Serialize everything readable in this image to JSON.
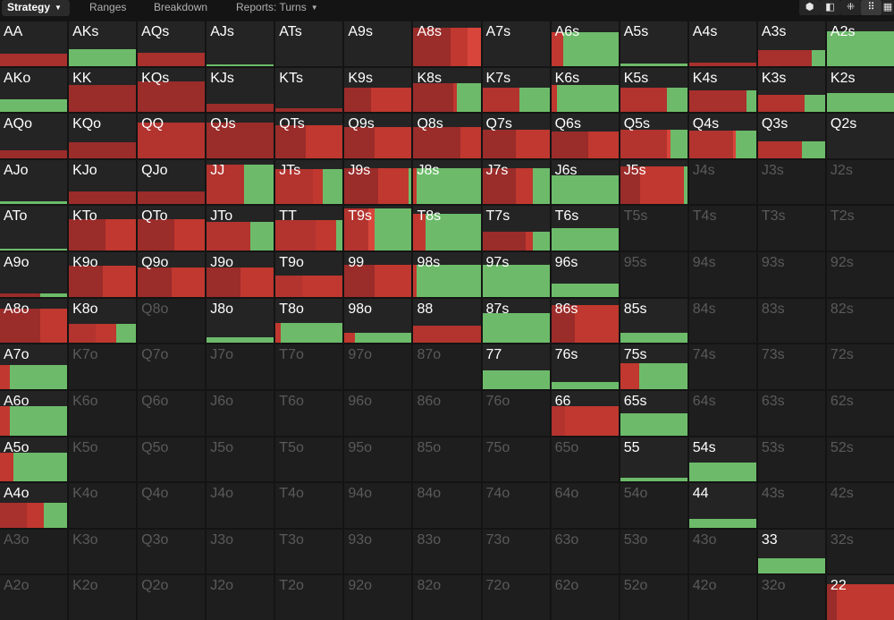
{
  "toolbar": {
    "tabs": [
      {
        "label": "Strategy",
        "active": true,
        "dropdown": true
      },
      {
        "label": "Ranges",
        "active": false,
        "dropdown": false
      },
      {
        "label": "Breakdown",
        "active": false,
        "dropdown": false
      },
      {
        "label": "Reports: Turns",
        "active": false,
        "dropdown": true
      }
    ],
    "view_buttons": [
      {
        "icon": "cube-icon",
        "glyph": "⬢"
      },
      {
        "icon": "half-square-icon",
        "glyph": "◧"
      },
      {
        "icon": "grid-4-icon",
        "glyph": "⁜"
      },
      {
        "icon": "grid-6-icon",
        "glyph": "⠿"
      },
      {
        "icon": "grid-9-icon",
        "glyph": "▦"
      }
    ]
  },
  "colors": {
    "raise_dark": "#8e2a28",
    "raise_mid": "#b3332f",
    "raise_light": "#d8453a",
    "call_green": "#6dbb6a",
    "cell_bg": "#242424",
    "cell_dim_bg": "#1e1e1e"
  },
  "matrix": {
    "rows": [
      [
        [
          "AA",
          0.28,
          [
            [
              1,
              "#a8302d"
            ]
          ]
        ],
        [
          "AKs",
          0.38,
          [
            [
              1,
              "#6dbb6a"
            ]
          ]
        ],
        [
          "AQs",
          0.3,
          [
            [
              1,
              "#a8302d"
            ]
          ]
        ],
        [
          "AJs",
          0.04,
          [
            [
              1,
              "#6dbb6a"
            ]
          ]
        ],
        [
          "ATs",
          0,
          []
        ],
        [
          "A9s",
          0,
          []
        ],
        [
          "A8s",
          0.85,
          [
            [
              0.55,
              "#9a2c2a"
            ],
            [
              0.25,
              "#c0382f"
            ],
            [
              0.2,
              "#d8453a"
            ]
          ]
        ],
        [
          "A7s",
          0,
          []
        ],
        [
          "A6s",
          0.75,
          [
            [
              0.18,
              "#c0382f"
            ],
            [
              0.82,
              "#6dbb6a"
            ]
          ]
        ],
        [
          "A5s",
          0.06,
          [
            [
              1,
              "#6dbb6a"
            ]
          ]
        ],
        [
          "A4s",
          0.08,
          [
            [
              1,
              "#a8302d"
            ]
          ]
        ],
        [
          "A3s",
          0.35,
          [
            [
              0.8,
              "#a8302d"
            ],
            [
              0.2,
              "#6dbb6a"
            ]
          ]
        ],
        [
          "A2s",
          0.78,
          [
            [
              1,
              "#6dbb6a"
            ]
          ]
        ]
      ],
      [
        [
          "AKo",
          0.28,
          [
            [
              1,
              "#6dbb6a"
            ]
          ]
        ],
        [
          "KK",
          0.6,
          [
            [
              1,
              "#9a2c2a"
            ]
          ]
        ],
        [
          "KQs",
          0.7,
          [
            [
              1,
              "#9a2c2a"
            ]
          ]
        ],
        [
          "KJs",
          0.18,
          [
            [
              1,
              "#9a2c2a"
            ]
          ]
        ],
        [
          "KTs",
          0.08,
          [
            [
              1,
              "#9a2c2a"
            ]
          ]
        ],
        [
          "K9s",
          0.55,
          [
            [
              0.4,
              "#9a2c2a"
            ],
            [
              0.6,
              "#c0382f"
            ]
          ]
        ],
        [
          "K8s",
          0.65,
          [
            [
              0.6,
              "#9a2c2a"
            ],
            [
              0.05,
              "#c0382f"
            ],
            [
              0.35,
              "#6dbb6a"
            ]
          ]
        ],
        [
          "K7s",
          0.55,
          [
            [
              0.55,
              "#b3332f"
            ],
            [
              0.45,
              "#6dbb6a"
            ]
          ]
        ],
        [
          "K6s",
          0.6,
          [
            [
              0.08,
              "#c0382f"
            ],
            [
              0.92,
              "#6dbb6a"
            ]
          ]
        ],
        [
          "K5s",
          0.55,
          [
            [
              0.7,
              "#b3332f"
            ],
            [
              0.3,
              "#6dbb6a"
            ]
          ]
        ],
        [
          "K4s",
          0.48,
          [
            [
              0.85,
              "#a8302d"
            ],
            [
              0.15,
              "#6dbb6a"
            ]
          ]
        ],
        [
          "K3s",
          0.38,
          [
            [
              0.7,
              "#b3332f"
            ],
            [
              0.3,
              "#6dbb6a"
            ]
          ]
        ],
        [
          "K2s",
          0.42,
          [
            [
              1,
              "#6dbb6a"
            ]
          ]
        ]
      ],
      [
        [
          "AQo",
          0.18,
          [
            [
              1,
              "#9a2c2a"
            ]
          ]
        ],
        [
          "KQo",
          0.35,
          [
            [
              1,
              "#9a2c2a"
            ]
          ]
        ],
        [
          "QQ",
          0.8,
          [
            [
              1,
              "#b3332f"
            ]
          ]
        ],
        [
          "QJs",
          0.8,
          [
            [
              1,
              "#9a2c2a"
            ]
          ]
        ],
        [
          "QTs",
          0.75,
          [
            [
              0.45,
              "#9a2c2a"
            ],
            [
              0.55,
              "#c0382f"
            ]
          ]
        ],
        [
          "Q9s",
          0.7,
          [
            [
              0.45,
              "#9a2c2a"
            ],
            [
              0.55,
              "#c0382f"
            ]
          ]
        ],
        [
          "Q8s",
          0.7,
          [
            [
              0.7,
              "#9a2c2a"
            ],
            [
              0.3,
              "#c0382f"
            ]
          ]
        ],
        [
          "Q7s",
          0.65,
          [
            [
              0.5,
              "#9a2c2a"
            ],
            [
              0.5,
              "#c0382f"
            ]
          ]
        ],
        [
          "Q6s",
          0.6,
          [
            [
              0.55,
              "#9a2c2a"
            ],
            [
              0.45,
              "#c0382f"
            ]
          ]
        ],
        [
          "Q5s",
          0.65,
          [
            [
              0.7,
              "#b3332f"
            ],
            [
              0.05,
              "#d8453a"
            ],
            [
              0.25,
              "#6dbb6a"
            ]
          ]
        ],
        [
          "Q4s",
          0.62,
          [
            [
              0.65,
              "#b3332f"
            ],
            [
              0.05,
              "#d8453a"
            ],
            [
              0.3,
              "#6dbb6a"
            ]
          ]
        ],
        [
          "Q3s",
          0.38,
          [
            [
              0.65,
              "#b3332f"
            ],
            [
              0.35,
              "#6dbb6a"
            ]
          ]
        ],
        [
          "Q2s",
          0,
          []
        ]
      ],
      [
        [
          "AJo",
          0.06,
          [
            [
              1,
              "#6dbb6a"
            ]
          ]
        ],
        [
          "KJo",
          0.3,
          [
            [
              1,
              "#9a2c2a"
            ]
          ]
        ],
        [
          "QJo",
          0.3,
          [
            [
              1,
              "#9a2c2a"
            ]
          ]
        ],
        [
          "JJ",
          0.9,
          [
            [
              0.55,
              "#b3332f"
            ],
            [
              0.45,
              "#6dbb6a"
            ]
          ]
        ],
        [
          "JTs",
          0.8,
          [
            [
              0.55,
              "#b3332f"
            ],
            [
              0.15,
              "#c0382f"
            ],
            [
              0.3,
              "#6dbb6a"
            ]
          ]
        ],
        [
          "J9s",
          0.82,
          [
            [
              0.5,
              "#9a2c2a"
            ],
            [
              0.45,
              "#c0382f"
            ],
            [
              0.05,
              "#6dbb6a"
            ]
          ]
        ],
        [
          "J8s",
          0.82,
          [
            [
              0.05,
              "#c0382f"
            ],
            [
              0.95,
              "#6dbb6a"
            ]
          ]
        ],
        [
          "J7s",
          0.82,
          [
            [
              0.5,
              "#9a2c2a"
            ],
            [
              0.25,
              "#c0382f"
            ],
            [
              0.25,
              "#6dbb6a"
            ]
          ]
        ],
        [
          "J6s",
          0.65,
          [
            [
              1,
              "#6dbb6a"
            ]
          ]
        ],
        [
          "J5s",
          0.85,
          [
            [
              0.3,
              "#9a2c2a"
            ],
            [
              0.65,
              "#c0382f"
            ],
            [
              0.05,
              "#6dbb6a"
            ]
          ]
        ],
        [
          "J4s",
          0,
          [],
          true
        ],
        [
          "J3s",
          0,
          [],
          true
        ],
        [
          "J2s",
          0,
          [],
          true
        ]
      ],
      [
        [
          "ATo",
          0.04,
          [
            [
              1,
              "#6dbb6a"
            ]
          ]
        ],
        [
          "KTo",
          0.7,
          [
            [
              0.55,
              "#9a2c2a"
            ],
            [
              0.45,
              "#c0382f"
            ]
          ]
        ],
        [
          "QTo",
          0.7,
          [
            [
              0.55,
              "#9a2c2a"
            ],
            [
              0.45,
              "#c0382f"
            ]
          ]
        ],
        [
          "JTo",
          0.65,
          [
            [
              0.65,
              "#b3332f"
            ],
            [
              0.35,
              "#6dbb6a"
            ]
          ]
        ],
        [
          "TT",
          0.68,
          [
            [
              0.6,
              "#b3332f"
            ],
            [
              0.3,
              "#c0382f"
            ],
            [
              0.1,
              "#6dbb6a"
            ]
          ]
        ],
        [
          "T9s",
          0.95,
          [
            [
              0.35,
              "#b3332f"
            ],
            [
              0.1,
              "#d8453a"
            ],
            [
              0.55,
              "#6dbb6a"
            ]
          ]
        ],
        [
          "T8s",
          0.82,
          [
            [
              0.18,
              "#c0382f"
            ],
            [
              0.82,
              "#6dbb6a"
            ]
          ]
        ],
        [
          "T7s",
          0.42,
          [
            [
              0.65,
              "#9a2c2a"
            ],
            [
              0.1,
              "#c0382f"
            ],
            [
              0.25,
              "#6dbb6a"
            ]
          ]
        ],
        [
          "T6s",
          0.5,
          [
            [
              1,
              "#6dbb6a"
            ]
          ]
        ],
        [
          "T5s",
          0,
          [],
          true
        ],
        [
          "T4s",
          0,
          [],
          true
        ],
        [
          "T3s",
          0,
          [],
          true
        ],
        [
          "T2s",
          0,
          [],
          true
        ]
      ],
      [
        [
          "A9o",
          0.08,
          [
            [
              0.6,
              "#9a2c2a"
            ],
            [
              0.4,
              "#6dbb6a"
            ]
          ]
        ],
        [
          "K9o",
          0.7,
          [
            [
              0.5,
              "#9a2c2a"
            ],
            [
              0.5,
              "#c0382f"
            ]
          ]
        ],
        [
          "Q9o",
          0.65,
          [
            [
              0.5,
              "#9a2c2a"
            ],
            [
              0.5,
              "#c0382f"
            ]
          ]
        ],
        [
          "J9o",
          0.65,
          [
            [
              0.5,
              "#9a2c2a"
            ],
            [
              0.5,
              "#c0382f"
            ]
          ]
        ],
        [
          "T9o",
          0.48,
          [
            [
              0.4,
              "#b3332f"
            ],
            [
              0.6,
              "#c0382f"
            ]
          ]
        ],
        [
          "99",
          0.72,
          [
            [
              0.45,
              "#9a2c2a"
            ],
            [
              0.55,
              "#c0382f"
            ]
          ]
        ],
        [
          "98s",
          0.72,
          [
            [
              0.05,
              "#c0382f"
            ],
            [
              0.95,
              "#6dbb6a"
            ]
          ]
        ],
        [
          "97s",
          0.72,
          [
            [
              1,
              "#6dbb6a"
            ]
          ]
        ],
        [
          "96s",
          0.3,
          [
            [
              1,
              "#6dbb6a"
            ]
          ]
        ],
        [
          "95s",
          0,
          [],
          true
        ],
        [
          "94s",
          0,
          [],
          true
        ],
        [
          "93s",
          0,
          [],
          true
        ],
        [
          "92s",
          0,
          [],
          true
        ]
      ],
      [
        [
          "A8o",
          0.78,
          [
            [
              0.6,
              "#9a2c2a"
            ],
            [
              0.4,
              "#c0382f"
            ]
          ]
        ],
        [
          "K8o",
          0.42,
          [
            [
              0.4,
              "#b3332f"
            ],
            [
              0.3,
              "#c0382f"
            ],
            [
              0.3,
              "#6dbb6a"
            ]
          ]
        ],
        [
          "Q8o",
          0,
          [],
          true
        ],
        [
          "J8o",
          0.12,
          [
            [
              1,
              "#6dbb6a"
            ]
          ]
        ],
        [
          "T8o",
          0.45,
          [
            [
              0.08,
              "#c0382f"
            ],
            [
              0.92,
              "#6dbb6a"
            ]
          ]
        ],
        [
          "98o",
          0.22,
          [
            [
              0.15,
              "#c0382f"
            ],
            [
              0.85,
              "#6dbb6a"
            ]
          ]
        ],
        [
          "88",
          0.38,
          [
            [
              1,
              "#b3332f"
            ]
          ]
        ],
        [
          "87s",
          0.68,
          [
            [
              1,
              "#6dbb6a"
            ]
          ]
        ],
        [
          "86s",
          0.85,
          [
            [
              0.35,
              "#9a2c2a"
            ],
            [
              0.65,
              "#c0382f"
            ]
          ]
        ],
        [
          "85s",
          0.22,
          [
            [
              1,
              "#6dbb6a"
            ]
          ]
        ],
        [
          "84s",
          0,
          [],
          true
        ],
        [
          "83s",
          0,
          [],
          true
        ],
        [
          "82s",
          0
        ]
      ]
    ]
  }
}
